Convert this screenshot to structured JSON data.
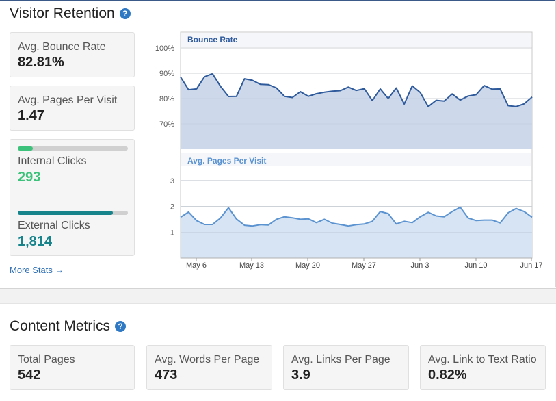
{
  "visitor_retention": {
    "title": "Visitor Retention",
    "help_glyph": "?",
    "bounce_rate_label": "Avg. Bounce Rate",
    "bounce_rate_value": "82.81%",
    "pages_per_visit_label": "Avg. Pages Per Visit",
    "pages_per_visit_value": "1.47",
    "internal_clicks_label": "Internal Clicks",
    "internal_clicks_value": "293",
    "internal_clicks_fraction": 0.139,
    "external_clicks_label": "External Clicks",
    "external_clicks_value": "1,814",
    "external_clicks_fraction": 0.861,
    "more_stats": "More Stats →"
  },
  "content_metrics": {
    "title": "Content Metrics",
    "help_glyph": "?",
    "cards": [
      {
        "label": "Total Pages",
        "value": "542"
      },
      {
        "label": "Avg. Words Per Page",
        "value": "473"
      },
      {
        "label": "Avg. Links Per Page",
        "value": "3.9"
      },
      {
        "label": "Avg. Link to Text Ratio",
        "value": "0.82%"
      }
    ]
  },
  "colors": {
    "internal": "#3cc27a",
    "external": "#17838a",
    "bounce_line": "#2e5a9c",
    "bounce_fill": "#cdd9ea",
    "ppv_line": "#5b93d1",
    "ppv_fill": "#d6e4f3"
  },
  "chart_data": [
    {
      "type": "area",
      "title": "Bounce Rate",
      "ylim": [
        60,
        100
      ],
      "yticks": [
        "100%",
        "90%",
        "80%",
        "70%"
      ],
      "ytick_values": [
        100,
        90,
        80,
        70
      ],
      "values": [
        88.5,
        83.5,
        83.8,
        88.6,
        89.8,
        84.8,
        80.8,
        80.9,
        87.8,
        87.2,
        85.6,
        85.5,
        84.2,
        80.9,
        80.4,
        82.7,
        80.9,
        81.9,
        82.5,
        82.9,
        83.1,
        84.5,
        83.2,
        83.9,
        79.2,
        83.8,
        80.0,
        84.2,
        77.8,
        85.0,
        82.4,
        76.8,
        79.3,
        79.0,
        81.8,
        79.4,
        81.0,
        81.5,
        85.1,
        83.7,
        83.8,
        77.2,
        76.8,
        77.9,
        80.6
      ]
    },
    {
      "type": "area",
      "title": "Avg. Pages Per Visit",
      "ylim": [
        0,
        3.5
      ],
      "yticks": [
        "3",
        "2",
        "1"
      ],
      "ytick_values": [
        3,
        2,
        1
      ],
      "x_labels": [
        "May 6",
        "May 13",
        "May 20",
        "May 27",
        "Jun 3",
        "Jun 10",
        "Jun 17"
      ],
      "values": [
        1.58,
        1.78,
        1.45,
        1.3,
        1.3,
        1.55,
        1.95,
        1.51,
        1.27,
        1.24,
        1.29,
        1.28,
        1.5,
        1.6,
        1.56,
        1.5,
        1.52,
        1.37,
        1.5,
        1.35,
        1.3,
        1.24,
        1.29,
        1.32,
        1.42,
        1.8,
        1.72,
        1.32,
        1.42,
        1.37,
        1.6,
        1.77,
        1.63,
        1.6,
        1.8,
        1.97,
        1.55,
        1.45,
        1.47,
        1.47,
        1.36,
        1.75,
        1.92,
        1.8,
        1.58
      ]
    }
  ]
}
